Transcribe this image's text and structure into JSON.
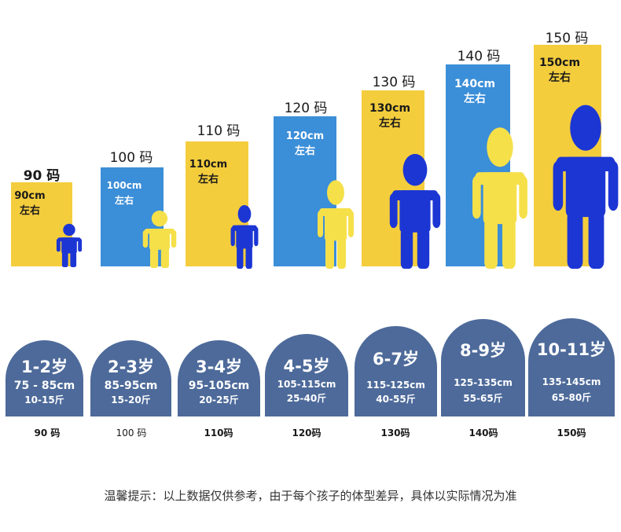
{
  "colors": {
    "yellow": "#f4cd3d",
    "blue": "#3b8ed8",
    "kid_blue": "#1c36d4",
    "kid_yellow": "#f6e04a",
    "arch": "#4d6a9a"
  },
  "sizes": [
    {
      "code_top": "90 码",
      "bar_cm": "90cm",
      "bar_approx": "左右",
      "age": "1-2岁",
      "height_range": "75 - 85cm",
      "weight_range": "10-15斤",
      "code_bottom": "90 码"
    },
    {
      "code_top": "100 码",
      "bar_cm": "100cm",
      "bar_approx": "左右",
      "age": "2-3岁",
      "height_range": "85-95cm",
      "weight_range": "15-20斤",
      "code_bottom": "100 码"
    },
    {
      "code_top": "110 码",
      "bar_cm": "110cm",
      "bar_approx": "左右",
      "age": "3-4岁",
      "height_range": "95-105cm",
      "weight_range": "20-25斤",
      "code_bottom": "110码"
    },
    {
      "code_top": "120 码",
      "bar_cm": "120cm",
      "bar_approx": "左右",
      "age": "4-5岁",
      "height_range": "105-115cm",
      "weight_range": "25-40斤",
      "code_bottom": "120码"
    },
    {
      "code_top": "130 码",
      "bar_cm": "130cm",
      "bar_approx": "左右",
      "age": "6-7岁",
      "height_range": "115-125cm",
      "weight_range": "40-55斤",
      "code_bottom": "130码"
    },
    {
      "code_top": "140 码",
      "bar_cm": "140cm",
      "bar_approx": "左右",
      "age": "8-9岁",
      "height_range": "125-135cm",
      "weight_range": "55-65斤",
      "code_bottom": "140码"
    },
    {
      "code_top": "150 码",
      "bar_cm": "150cm",
      "bar_approx": "左右",
      "age": "10-11岁",
      "height_range": "135-145cm",
      "weight_range": "65-80斤",
      "code_bottom": "150码"
    }
  ],
  "tip": "温馨提示：以上数据仅供参考，由于每个孩子的体型差异，具体以实际情况为准"
}
